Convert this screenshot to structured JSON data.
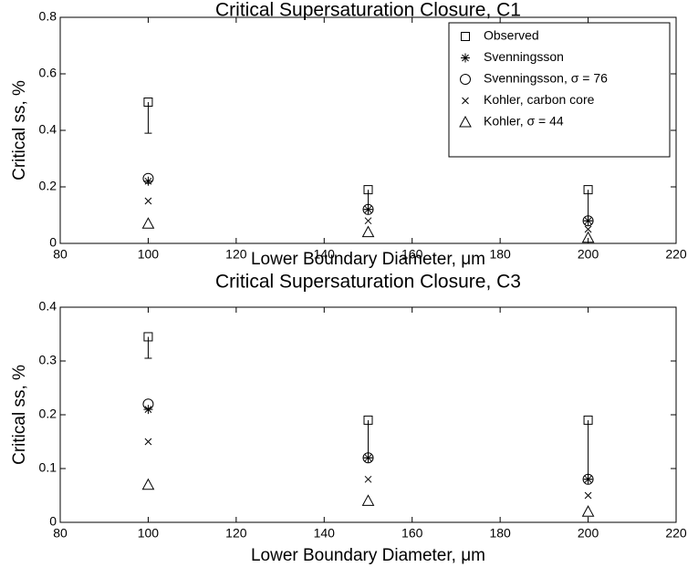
{
  "chart_data": [
    {
      "type": "scatter",
      "title": "Critical Supersaturation Closure, C1",
      "xlabel": "Lower Boundary Diameter, μm",
      "ylabel": "Critical ss, %",
      "x": [
        100,
        150,
        200
      ],
      "xlim": [
        80,
        220
      ],
      "xticks": [
        80,
        100,
        120,
        140,
        160,
        180,
        200,
        220
      ],
      "ylim": [
        0,
        0.8
      ],
      "yticks": [
        0,
        0.2,
        0.4,
        0.6,
        0.8
      ],
      "legend": "upper right",
      "series": [
        {
          "name": "Observed",
          "marker": "square",
          "color": "#000000",
          "values": [
            0.5,
            0.19,
            0.19
          ],
          "errors": [
            0.11,
            0.07,
            0.11
          ]
        },
        {
          "name": "Svenningsson",
          "marker": "star",
          "color": "#000000",
          "values": [
            0.22,
            0.12,
            0.08
          ]
        },
        {
          "name": "Svenningsson, σ = 76",
          "marker": "circle",
          "color": "#000000",
          "values": [
            0.23,
            0.12,
            0.08
          ]
        },
        {
          "name": "Kohler, carbon core",
          "marker": "x",
          "color": "#000000",
          "values": [
            0.15,
            0.08,
            0.05
          ]
        },
        {
          "name": "Kohler, σ = 44",
          "marker": "triangle",
          "color": "#000000",
          "values": [
            0.07,
            0.04,
            0.02
          ]
        }
      ]
    },
    {
      "type": "scatter",
      "title": "Critical Supersaturation Closure, C3",
      "xlabel": "Lower Boundary Diameter, μm",
      "ylabel": "Critical ss, %",
      "x": [
        100,
        150,
        200
      ],
      "xlim": [
        80,
        220
      ],
      "xticks": [
        80,
        100,
        120,
        140,
        160,
        180,
        200,
        220
      ],
      "ylim": [
        0,
        0.4
      ],
      "yticks": [
        0,
        0.1,
        0.2,
        0.3,
        0.4
      ],
      "series": [
        {
          "marker": "square",
          "color": "#000000",
          "values": [
            0.345,
            0.19,
            0.19
          ],
          "errors": [
            0.04,
            0.07,
            0.11
          ]
        },
        {
          "marker": "star",
          "color": "#000000",
          "values": [
            0.21,
            0.12,
            0.08
          ]
        },
        {
          "marker": "circle",
          "color": "#000000",
          "values": [
            0.22,
            0.12,
            0.08
          ]
        },
        {
          "marker": "x",
          "color": "#000000",
          "values": [
            0.15,
            0.08,
            0.05
          ]
        },
        {
          "marker": "triangle",
          "color": "#000000",
          "values": [
            0.07,
            0.04,
            0.02
          ]
        }
      ]
    }
  ]
}
